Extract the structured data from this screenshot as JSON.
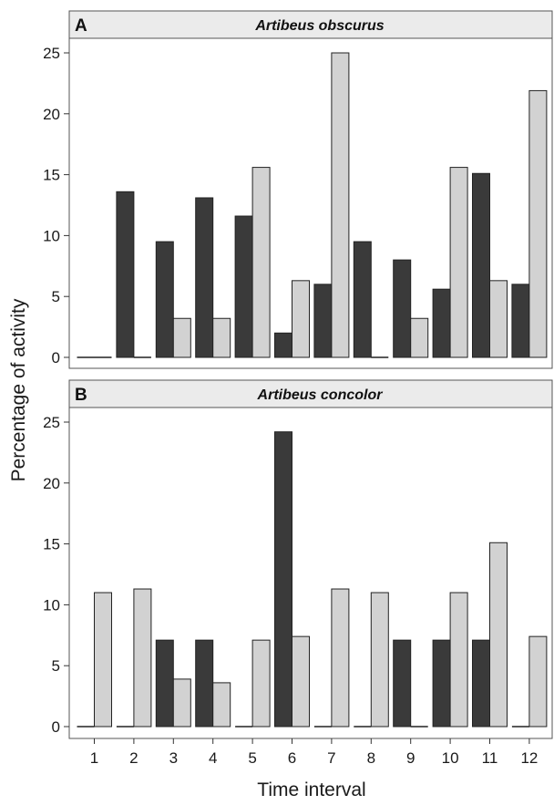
{
  "ylabel": "Percentage of activity",
  "xlabel": "Time interval",
  "colors": {
    "series_dark": "#3a3a3a",
    "series_light": "#d2d2d2",
    "strip_bg": "#ebebeb",
    "frame": "#555555"
  },
  "chart_data": [
    {
      "type": "bar",
      "panel_letter": "A",
      "title": "Artibeus obscurus",
      "categories": [
        "1",
        "2",
        "3",
        "4",
        "5",
        "6",
        "7",
        "8",
        "9",
        "10",
        "11",
        "12"
      ],
      "ylim": [
        0,
        26
      ],
      "yticks": [
        0,
        5,
        10,
        15,
        20,
        25
      ],
      "grid": false,
      "series": [
        {
          "values": [
            0,
            13.6,
            9.5,
            13.1,
            11.6,
            2.0,
            6.0,
            9.5,
            8.0,
            5.6,
            15.1,
            6.0
          ]
        },
        {
          "values": [
            0,
            0,
            3.2,
            3.2,
            15.6,
            6.3,
            25.0,
            0,
            3.2,
            15.6,
            6.3,
            21.9
          ]
        }
      ]
    },
    {
      "type": "bar",
      "panel_letter": "B",
      "title": "Artibeus concolor",
      "categories": [
        "1",
        "2",
        "3",
        "4",
        "5",
        "6",
        "7",
        "8",
        "9",
        "10",
        "11",
        "12"
      ],
      "ylim": [
        0,
        26
      ],
      "yticks": [
        0,
        5,
        10,
        15,
        20,
        25
      ],
      "grid": false,
      "series": [
        {
          "values": [
            0,
            0,
            7.1,
            7.1,
            0,
            24.2,
            0,
            0,
            7.1,
            7.1,
            7.1,
            0
          ]
        },
        {
          "values": [
            11.0,
            11.3,
            3.9,
            3.6,
            7.1,
            7.4,
            11.3,
            11.0,
            0,
            11.0,
            15.1,
            7.4
          ]
        }
      ]
    }
  ]
}
